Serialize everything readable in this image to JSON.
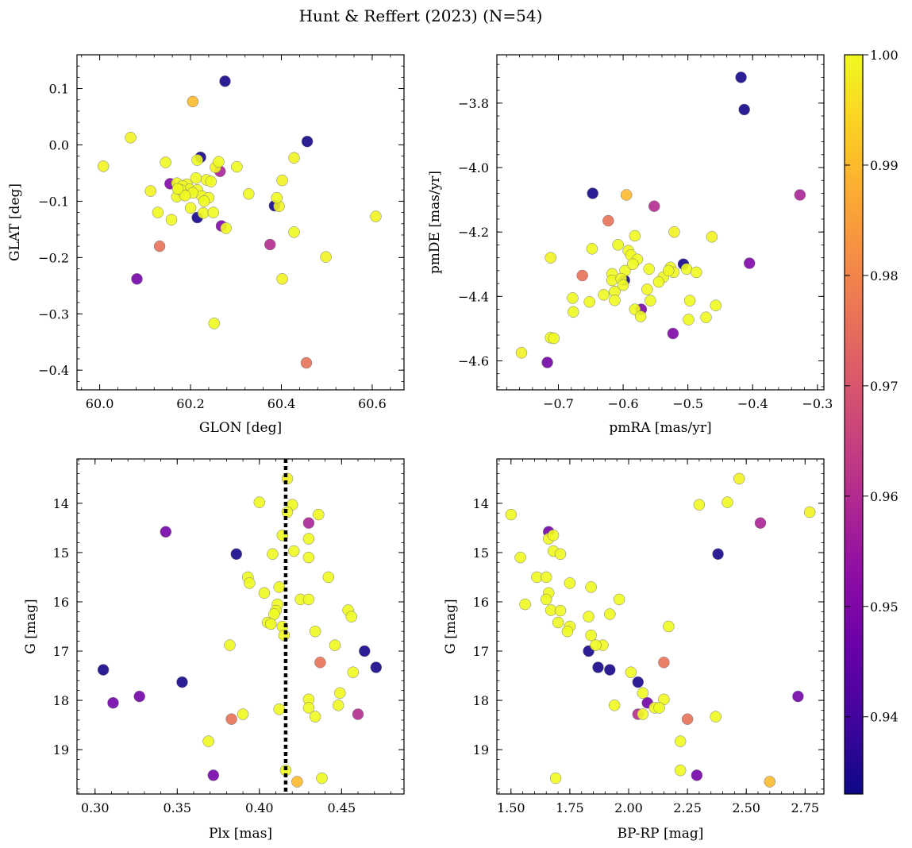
{
  "figure": {
    "title": "Hunt & Reffert (2023) (N=54)",
    "colormap": "plasma",
    "colorbar": {
      "range": [
        0.933,
        1.0
      ],
      "ticks": [
        0.94,
        0.95,
        0.96,
        0.97,
        0.98,
        0.99,
        1.0
      ],
      "tick_labels": [
        "0.94",
        "0.95",
        "0.96",
        "0.97",
        "0.98",
        "0.99",
        "1.00"
      ]
    }
  },
  "chart_data": [
    {
      "id": "sky",
      "type": "scatter",
      "xlabel": "GLON [deg]",
      "ylabel": "GLAT [deg]",
      "xlim": [
        59.95,
        60.67
      ],
      "ylim": [
        -0.435,
        0.16
      ],
      "xticks": [
        60.0,
        60.2,
        60.4,
        60.6
      ],
      "xtick_labels": [
        "60.0",
        "60.2",
        "60.4",
        "60.6"
      ],
      "yticks": [
        0.1,
        0.0,
        -0.1,
        -0.2,
        -0.3,
        -0.4
      ],
      "ytick_labels": [
        "0.1",
        "0.0",
        "−0.1",
        "−0.2",
        "−0.3",
        "−0.4"
      ],
      "invert_y": false,
      "points": [
        [
          60.276,
          0.113,
          0.934
        ],
        [
          60.205,
          0.077,
          0.99
        ],
        [
          60.068,
          0.013,
          0.999
        ],
        [
          60.457,
          0.006,
          0.934
        ],
        [
          60.008,
          -0.038,
          0.999
        ],
        [
          60.222,
          -0.022,
          0.934
        ],
        [
          60.428,
          -0.023,
          0.999
        ],
        [
          60.145,
          -0.031,
          1.0
        ],
        [
          60.215,
          -0.027,
          1.0
        ],
        [
          60.262,
          -0.03,
          1.0
        ],
        [
          60.302,
          -0.039,
          1.0
        ],
        [
          60.255,
          -0.04,
          0.999
        ],
        [
          60.265,
          -0.047,
          0.958
        ],
        [
          60.155,
          -0.069,
          0.95
        ],
        [
          60.212,
          -0.059,
          1.0
        ],
        [
          60.235,
          -0.062,
          1.0
        ],
        [
          60.402,
          -0.063,
          0.999
        ],
        [
          60.17,
          -0.068,
          1.0
        ],
        [
          60.192,
          -0.07,
          1.0
        ],
        [
          60.182,
          -0.073,
          1.0
        ],
        [
          60.198,
          -0.079,
          1.0
        ],
        [
          60.215,
          -0.08,
          1.0
        ],
        [
          60.112,
          -0.082,
          0.999
        ],
        [
          60.185,
          -0.088,
          1.0
        ],
        [
          60.17,
          -0.092,
          1.0
        ],
        [
          60.225,
          -0.091,
          1.0
        ],
        [
          60.24,
          -0.094,
          1.0
        ],
        [
          60.328,
          -0.087,
          1.0
        ],
        [
          60.39,
          -0.094,
          1.0
        ],
        [
          60.385,
          -0.108,
          0.934
        ],
        [
          60.395,
          -0.109,
          0.999
        ],
        [
          60.2,
          -0.112,
          1.0
        ],
        [
          60.128,
          -0.12,
          1.0
        ],
        [
          60.228,
          -0.121,
          1.0
        ],
        [
          60.215,
          -0.129,
          0.934
        ],
        [
          60.158,
          -0.133,
          1.0
        ],
        [
          60.608,
          -0.127,
          0.999
        ],
        [
          60.268,
          -0.144,
          0.95
        ],
        [
          60.278,
          -0.148,
          1.0
        ],
        [
          60.428,
          -0.155,
          1.0
        ],
        [
          60.132,
          -0.18,
          0.976
        ],
        [
          60.375,
          -0.177,
          0.96
        ],
        [
          60.498,
          -0.199,
          0.999
        ],
        [
          60.082,
          -0.238,
          0.948
        ],
        [
          60.402,
          -0.238,
          0.999
        ],
        [
          60.252,
          -0.317,
          1.0
        ],
        [
          60.455,
          -0.387,
          0.976
        ],
        [
          60.25,
          -0.12,
          1.0
        ],
        [
          60.205,
          -0.085,
          1.0
        ],
        [
          60.178,
          -0.08,
          1.0
        ],
        [
          60.245,
          -0.065,
          1.0
        ],
        [
          60.188,
          -0.09,
          1.0
        ],
        [
          60.23,
          -0.1,
          1.0
        ],
        [
          60.172,
          -0.078,
          1.0
        ]
      ]
    },
    {
      "id": "pm",
      "type": "scatter",
      "xlabel": "pmRA [mas/yr]",
      "ylabel": "pmDE [mas/yr]",
      "xlim": [
        -0.795,
        -0.29
      ],
      "ylim": [
        -4.69,
        -3.65
      ],
      "xticks": [
        -0.7,
        -0.6,
        -0.5,
        -0.4,
        -0.3
      ],
      "xtick_labels": [
        "−0.7",
        "−0.6",
        "−0.5",
        "−0.4",
        "−0.3"
      ],
      "yticks": [
        -3.8,
        -4.0,
        -4.2,
        -4.4,
        -4.6
      ],
      "ytick_labels": [
        "−3.8",
        "−4.0",
        "−4.2",
        "−4.4",
        "−4.6"
      ],
      "invert_y": false,
      "points": [
        [
          -0.418,
          -3.72,
          0.934
        ],
        [
          -0.413,
          -3.82,
          0.934
        ],
        [
          -0.647,
          -4.08,
          0.934
        ],
        [
          -0.595,
          -4.085,
          0.99
        ],
        [
          -0.327,
          -4.085,
          0.958
        ],
        [
          -0.552,
          -4.12,
          0.96
        ],
        [
          -0.623,
          -4.165,
          0.976
        ],
        [
          -0.521,
          -4.2,
          0.999
        ],
        [
          -0.582,
          -4.212,
          1.0
        ],
        [
          -0.463,
          -4.215,
          0.999
        ],
        [
          -0.608,
          -4.24,
          1.0
        ],
        [
          -0.648,
          -4.252,
          1.0
        ],
        [
          -0.592,
          -4.258,
          1.0
        ],
        [
          -0.588,
          -4.272,
          1.0
        ],
        [
          -0.578,
          -4.285,
          1.0
        ],
        [
          -0.712,
          -4.28,
          0.999
        ],
        [
          -0.405,
          -4.297,
          0.95
        ],
        [
          -0.507,
          -4.3,
          0.934
        ],
        [
          -0.527,
          -4.31,
          1.0
        ],
        [
          -0.502,
          -4.315,
          1.0
        ],
        [
          -0.522,
          -4.325,
          1.0
        ],
        [
          -0.487,
          -4.325,
          1.0
        ],
        [
          -0.597,
          -4.32,
          1.0
        ],
        [
          -0.617,
          -4.33,
          1.0
        ],
        [
          -0.538,
          -4.34,
          1.0
        ],
        [
          -0.598,
          -4.35,
          0.934
        ],
        [
          -0.617,
          -4.35,
          1.0
        ],
        [
          -0.603,
          -4.345,
          1.0
        ],
        [
          -0.663,
          -4.335,
          0.976
        ],
        [
          -0.563,
          -4.378,
          1.0
        ],
        [
          -0.613,
          -4.385,
          1.0
        ],
        [
          -0.678,
          -4.405,
          1.0
        ],
        [
          -0.558,
          -4.413,
          1.0
        ],
        [
          -0.613,
          -4.412,
          1.0
        ],
        [
          -0.652,
          -4.417,
          1.0
        ],
        [
          -0.497,
          -4.413,
          1.0
        ],
        [
          -0.457,
          -4.428,
          1.0
        ],
        [
          -0.582,
          -4.44,
          1.0
        ],
        [
          -0.572,
          -4.44,
          0.95
        ],
        [
          -0.677,
          -4.448,
          1.0
        ],
        [
          -0.573,
          -4.462,
          1.0
        ],
        [
          -0.472,
          -4.465,
          1.0
        ],
        [
          -0.499,
          -4.472,
          1.0
        ],
        [
          -0.523,
          -4.515,
          0.95
        ],
        [
          -0.712,
          -4.528,
          1.0
        ],
        [
          -0.707,
          -4.53,
          1.0
        ],
        [
          -0.757,
          -4.575,
          0.999
        ],
        [
          -0.717,
          -4.605,
          0.948
        ],
        [
          -0.585,
          -4.3,
          1.0
        ],
        [
          -0.56,
          -4.315,
          1.0
        ],
        [
          -0.6,
          -4.365,
          1.0
        ],
        [
          -0.545,
          -4.355,
          1.0
        ],
        [
          -0.63,
          -4.395,
          1.0
        ],
        [
          -0.53,
          -4.32,
          1.0
        ]
      ]
    },
    {
      "id": "plx",
      "type": "scatter",
      "xlabel": "Plx [mas]",
      "ylabel": "G [mag]",
      "xlim": [
        0.289,
        0.488
      ],
      "ylim": [
        13.1,
        19.9
      ],
      "xticks": [
        0.3,
        0.35,
        0.4,
        0.45
      ],
      "xtick_labels": [
        "0.30",
        "0.35",
        "0.40",
        "0.45"
      ],
      "yticks": [
        14,
        15,
        16,
        17,
        18,
        19
      ],
      "ytick_labels": [
        "14",
        "15",
        "16",
        "17",
        "18",
        "19"
      ],
      "invert_y": true,
      "vline": 0.416,
      "points": [
        [
          0.417,
          13.5,
          0.999
        ],
        [
          0.4,
          13.98,
          1.0
        ],
        [
          0.42,
          14.03,
          1.0
        ],
        [
          0.417,
          14.18,
          1.0
        ],
        [
          0.436,
          14.23,
          1.0
        ],
        [
          0.43,
          14.4,
          0.958
        ],
        [
          0.343,
          14.58,
          0.948
        ],
        [
          0.414,
          14.65,
          1.0
        ],
        [
          0.43,
          14.72,
          1.0
        ],
        [
          0.421,
          14.97,
          1.0
        ],
        [
          0.408,
          15.03,
          1.0
        ],
        [
          0.386,
          15.03,
          0.934
        ],
        [
          0.43,
          15.1,
          1.0
        ],
        [
          0.393,
          15.5,
          1.0
        ],
        [
          0.442,
          15.5,
          1.0
        ],
        [
          0.394,
          15.62,
          1.0
        ],
        [
          0.412,
          15.7,
          1.0
        ],
        [
          0.403,
          15.82,
          1.0
        ],
        [
          0.425,
          15.95,
          1.0
        ],
        [
          0.43,
          15.95,
          1.0
        ],
        [
          0.411,
          16.05,
          1.0
        ],
        [
          0.454,
          16.17,
          1.0
        ],
        [
          0.41,
          16.18,
          1.0
        ],
        [
          0.409,
          16.25,
          1.0
        ],
        [
          0.456,
          16.3,
          1.0
        ],
        [
          0.405,
          16.42,
          1.0
        ],
        [
          0.407,
          16.45,
          1.0
        ],
        [
          0.414,
          16.5,
          1.0
        ],
        [
          0.434,
          16.6,
          1.0
        ],
        [
          0.415,
          16.68,
          1.0
        ],
        [
          0.446,
          16.88,
          1.0
        ],
        [
          0.382,
          16.88,
          1.0
        ],
        [
          0.437,
          17.23,
          0.976
        ],
        [
          0.464,
          17.0,
          0.934
        ],
        [
          0.471,
          17.33,
          0.934
        ],
        [
          0.305,
          17.38,
          0.934
        ],
        [
          0.457,
          17.43,
          1.0
        ],
        [
          0.353,
          17.63,
          0.934
        ],
        [
          0.449,
          17.85,
          1.0
        ],
        [
          0.327,
          17.92,
          0.948
        ],
        [
          0.43,
          17.98,
          1.0
        ],
        [
          0.311,
          18.05,
          0.948
        ],
        [
          0.448,
          18.1,
          1.0
        ],
        [
          0.43,
          18.15,
          1.0
        ],
        [
          0.412,
          18.18,
          1.0
        ],
        [
          0.39,
          18.28,
          1.0
        ],
        [
          0.46,
          18.28,
          0.96
        ],
        [
          0.434,
          18.33,
          1.0
        ],
        [
          0.383,
          18.38,
          0.976
        ],
        [
          0.369,
          18.83,
          1.0
        ],
        [
          0.416,
          19.42,
          1.0
        ],
        [
          0.372,
          19.52,
          0.948
        ],
        [
          0.438,
          19.58,
          1.0
        ],
        [
          0.423,
          19.65,
          0.99
        ]
      ]
    },
    {
      "id": "cmd",
      "type": "scatter",
      "xlabel": "BP-RP [mag]",
      "ylabel": "G [mag]",
      "xlim": [
        1.44,
        2.83
      ],
      "ylim": [
        13.1,
        19.9
      ],
      "xticks": [
        1.5,
        1.75,
        2.0,
        2.25,
        2.5,
        2.75
      ],
      "xtick_labels": [
        "1.50",
        "1.75",
        "2.00",
        "2.25",
        "2.50",
        "2.75"
      ],
      "yticks": [
        14,
        15,
        16,
        17,
        18,
        19
      ],
      "ytick_labels": [
        "14",
        "15",
        "16",
        "17",
        "18",
        "19"
      ],
      "invert_y": true,
      "points": [
        [
          2.47,
          13.5,
          0.999
        ],
        [
          2.42,
          13.98,
          1.0
        ],
        [
          2.3,
          14.03,
          1.0
        ],
        [
          2.77,
          14.18,
          0.999
        ],
        [
          1.5,
          14.23,
          1.0
        ],
        [
          2.56,
          14.4,
          0.958
        ],
        [
          1.66,
          14.58,
          0.948
        ],
        [
          1.66,
          14.72,
          1.0
        ],
        [
          1.68,
          14.65,
          1.0
        ],
        [
          1.68,
          14.97,
          1.0
        ],
        [
          1.54,
          15.1,
          1.0
        ],
        [
          1.71,
          15.03,
          1.0
        ],
        [
          2.38,
          15.03,
          0.934
        ],
        [
          1.61,
          15.5,
          1.0
        ],
        [
          1.65,
          15.5,
          1.0
        ],
        [
          1.75,
          15.62,
          1.0
        ],
        [
          1.84,
          15.7,
          1.0
        ],
        [
          1.66,
          15.82,
          1.0
        ],
        [
          1.65,
          15.95,
          1.0
        ],
        [
          1.96,
          15.95,
          1.0
        ],
        [
          1.56,
          16.05,
          1.0
        ],
        [
          1.67,
          16.17,
          1.0
        ],
        [
          1.71,
          16.18,
          1.0
        ],
        [
          1.92,
          16.25,
          1.0
        ],
        [
          1.83,
          16.3,
          1.0
        ],
        [
          1.7,
          16.42,
          1.0
        ],
        [
          1.75,
          16.5,
          1.0
        ],
        [
          2.17,
          16.5,
          1.0
        ],
        [
          1.74,
          16.6,
          1.0
        ],
        [
          1.84,
          16.68,
          1.0
        ],
        [
          1.89,
          16.88,
          1.0
        ],
        [
          1.86,
          16.88,
          1.0
        ],
        [
          1.83,
          17.0,
          0.934
        ],
        [
          2.15,
          17.23,
          0.976
        ],
        [
          1.87,
          17.33,
          0.934
        ],
        [
          1.92,
          17.38,
          0.934
        ],
        [
          2.01,
          17.43,
          1.0
        ],
        [
          2.04,
          17.63,
          0.934
        ],
        [
          2.06,
          17.85,
          1.0
        ],
        [
          2.72,
          17.92,
          0.948
        ],
        [
          2.15,
          17.98,
          1.0
        ],
        [
          2.08,
          18.05,
          0.948
        ],
        [
          1.94,
          18.1,
          1.0
        ],
        [
          2.11,
          18.15,
          1.0
        ],
        [
          2.13,
          18.15,
          1.0
        ],
        [
          2.06,
          18.28,
          1.0
        ],
        [
          2.04,
          18.28,
          0.96
        ],
        [
          2.37,
          18.33,
          1.0
        ],
        [
          2.25,
          18.38,
          0.976
        ],
        [
          2.22,
          18.83,
          1.0
        ],
        [
          2.22,
          19.42,
          1.0
        ],
        [
          2.29,
          19.52,
          0.948
        ],
        [
          1.69,
          19.58,
          1.0
        ],
        [
          2.6,
          19.65,
          0.99
        ]
      ]
    }
  ]
}
